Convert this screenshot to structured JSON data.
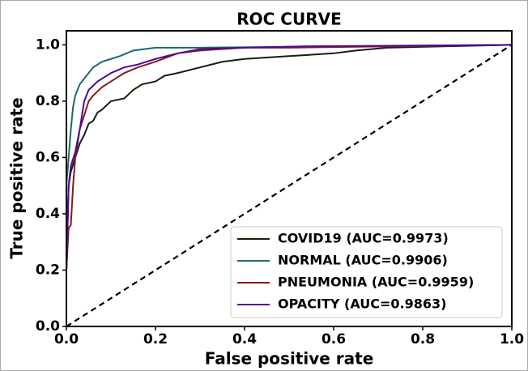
{
  "chart_data": {
    "type": "line",
    "title": "ROC CURVE",
    "xlabel": "False positive rate",
    "ylabel": "True positive rate",
    "xlim": [
      0,
      1
    ],
    "ylim": [
      0,
      1.05
    ],
    "xticks": [
      {
        "value": 0,
        "label": "0.0"
      },
      0.2,
      0.4,
      0.6,
      0.8,
      {
        "value": 1,
        "label": "1.0"
      }
    ],
    "yticks": [
      {
        "value": 0,
        "label": "0.0"
      },
      0.2,
      0.4,
      0.6,
      0.8,
      {
        "value": 1,
        "label": "1.0"
      }
    ],
    "legend": "lower right",
    "series": [
      {
        "name": "COVID19 (AUC=0.9973)",
        "color": "#14210a",
        "x": [
          0,
          0.005,
          0.01,
          0.02,
          0.03,
          0.04,
          0.05,
          0.06,
          0.07,
          0.08,
          0.1,
          0.13,
          0.15,
          0.17,
          0.2,
          0.22,
          0.25,
          0.3,
          0.35,
          0.4,
          0.5,
          0.6,
          0.65,
          0.72,
          1
        ],
        "values": [
          0.2,
          0.5,
          0.55,
          0.6,
          0.65,
          0.68,
          0.72,
          0.73,
          0.76,
          0.77,
          0.8,
          0.81,
          0.84,
          0.86,
          0.87,
          0.89,
          0.9,
          0.92,
          0.94,
          0.95,
          0.96,
          0.97,
          0.98,
          0.99,
          1
        ]
      },
      {
        "name": "NORMAL (AUC=0.9906)",
        "color": "#1b6b6b",
        "x": [
          0,
          0.005,
          0.01,
          0.015,
          0.02,
          0.03,
          0.04,
          0.05,
          0.06,
          0.08,
          0.1,
          0.12,
          0.15,
          0.2,
          0.3,
          1
        ],
        "values": [
          0.5,
          0.6,
          0.7,
          0.78,
          0.82,
          0.86,
          0.88,
          0.9,
          0.92,
          0.94,
          0.95,
          0.96,
          0.98,
          0.99,
          0.99,
          1
        ]
      },
      {
        "name": "PNEUMONIA (AUC=0.9959)",
        "color": "#8b1a1a",
        "x": [
          0,
          0.005,
          0.01,
          0.015,
          0.02,
          0.03,
          0.04,
          0.05,
          0.06,
          0.08,
          0.1,
          0.13,
          0.16,
          0.2,
          0.25,
          0.3,
          0.4,
          0.5,
          1
        ],
        "values": [
          0.2,
          0.35,
          0.36,
          0.5,
          0.6,
          0.7,
          0.75,
          0.8,
          0.82,
          0.85,
          0.87,
          0.9,
          0.92,
          0.94,
          0.97,
          0.98,
          0.99,
          0.99,
          1
        ]
      },
      {
        "name": "OPACITY (AUC=0.9863)",
        "color": "#4b0a9b",
        "x": [
          0,
          0.005,
          0.01,
          0.02,
          0.03,
          0.04,
          0.05,
          0.07,
          0.1,
          0.13,
          0.16,
          0.2,
          0.25,
          0.3,
          0.4,
          0.54,
          1
        ],
        "values": [
          0.2,
          0.5,
          0.57,
          0.62,
          0.7,
          0.8,
          0.84,
          0.87,
          0.9,
          0.92,
          0.93,
          0.95,
          0.97,
          0.985,
          0.99,
          0.995,
          1
        ]
      }
    ]
  }
}
